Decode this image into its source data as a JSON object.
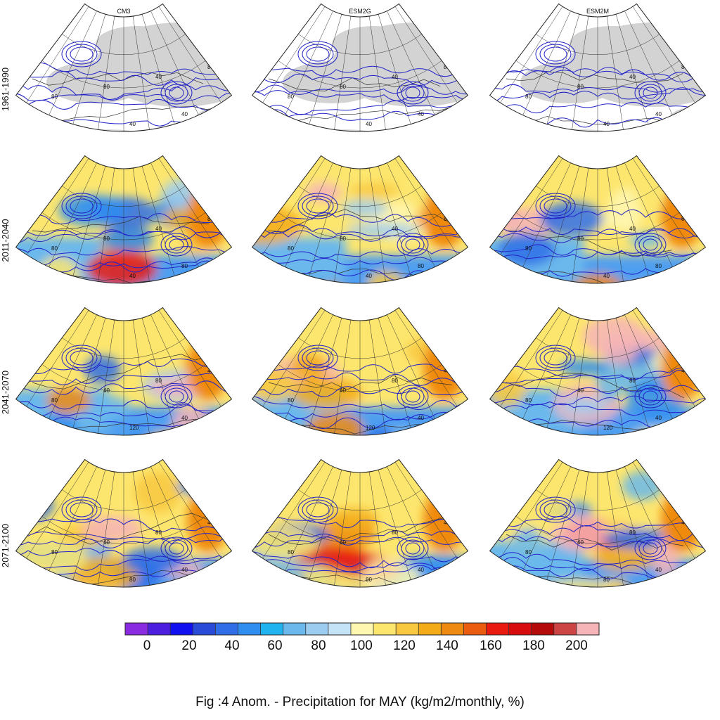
{
  "figure": {
    "caption": "Fig :4  Anom.  - Precipitation for MAY (kg/m2/monthly, %)"
  },
  "models": [
    "CM3",
    "ESM2G",
    "ESM2M"
  ],
  "periods": [
    "1961-1990",
    "2011-2040",
    "2041-2070",
    "2071-2100"
  ],
  "colorbar": {
    "tick_labels": [
      "0",
      "20",
      "40",
      "60",
      "80",
      "100",
      "120",
      "140",
      "160",
      "180",
      "200"
    ],
    "colors": [
      "#8a2be2",
      "#4b1ee0",
      "#1010f0",
      "#2a4ad8",
      "#2f6ee6",
      "#2f8ef0",
      "#1fb4f0",
      "#6ab8ec",
      "#9ccdf0",
      "#c5e3f7",
      "#fff7b0",
      "#fde66e",
      "#f8c840",
      "#f3ab18",
      "#ef8a10",
      "#ec5c10",
      "#ea1a10",
      "#d80c0c",
      "#b40a0a",
      "#cc4444",
      "#f6b4b8"
    ]
  },
  "contour_labels": {
    "p0": [
      "40",
      "80",
      "40",
      "80",
      "40",
      "40",
      "40",
      "80"
    ],
    "p1": [
      "80",
      "80",
      "40",
      "80",
      "40",
      "40",
      "80",
      "80"
    ],
    "p2": [
      "80",
      "80",
      "40",
      "40",
      "120",
      "80",
      "40",
      "40"
    ],
    "p3": [
      "40",
      "80",
      "40",
      "40",
      "80",
      "80",
      "40",
      "40"
    ]
  },
  "colors": {
    "land_gray": "#d3d3d3",
    "contour_blue": "#2323c8",
    "coast": "#333333",
    "background": "#ffffff"
  }
}
